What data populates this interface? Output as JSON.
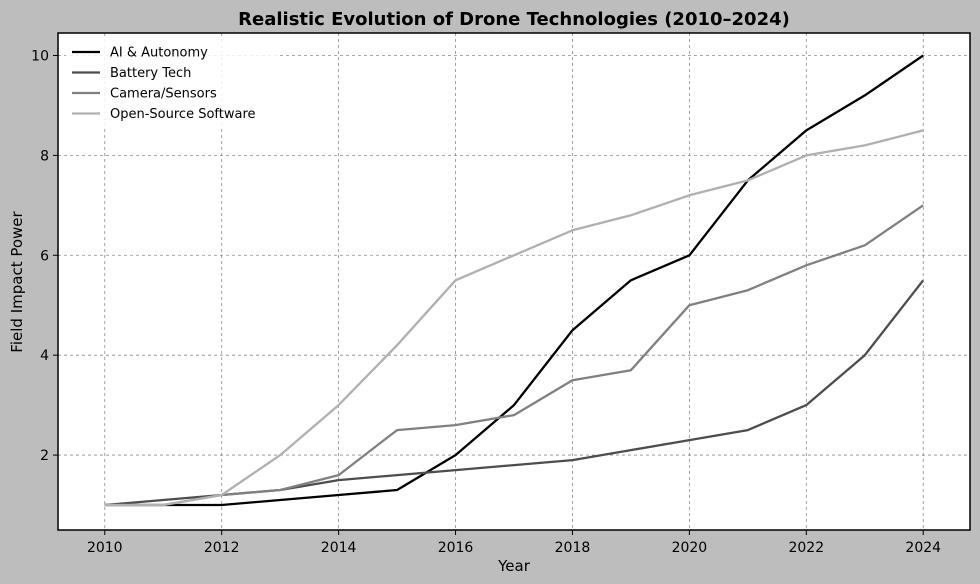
{
  "chart_data": {
    "type": "line",
    "title": "Realistic Evolution of Drone Technologies (2010–2024)",
    "xlabel": "Year",
    "ylabel": "Field Impact Power",
    "x": [
      2010,
      2011,
      2012,
      2013,
      2014,
      2015,
      2016,
      2017,
      2018,
      2019,
      2020,
      2021,
      2022,
      2023,
      2024
    ],
    "xlim": [
      2009.2,
      2024.8
    ],
    "ylim": [
      0.5,
      10.45
    ],
    "xticks": [
      2010,
      2012,
      2014,
      2016,
      2018,
      2020,
      2022,
      2024
    ],
    "yticks": [
      2,
      4,
      6,
      8,
      10
    ],
    "grid": true,
    "legend_position": "top-left",
    "series": [
      {
        "name": "AI & Autonomy",
        "color": "#000000",
        "values": [
          1.0,
          1.0,
          1.0,
          1.1,
          1.2,
          1.3,
          2.0,
          3.0,
          4.5,
          5.5,
          6.0,
          7.5,
          8.5,
          9.2,
          10.0
        ]
      },
      {
        "name": "Battery Tech",
        "color": "#4d4d4d",
        "values": [
          1.0,
          1.1,
          1.2,
          1.3,
          1.5,
          1.6,
          1.7,
          1.8,
          1.9,
          2.1,
          2.3,
          2.5,
          3.0,
          4.0,
          5.5
        ]
      },
      {
        "name": "Camera/Sensors",
        "color": "#808080",
        "values": [
          1.0,
          1.0,
          1.2,
          1.3,
          1.6,
          2.5,
          2.6,
          2.8,
          3.5,
          3.7,
          5.0,
          5.3,
          5.8,
          6.2,
          7.0
        ]
      },
      {
        "name": "Open-Source Software",
        "color": "#b0b0b0",
        "values": [
          1.0,
          1.0,
          1.2,
          2.0,
          3.0,
          4.2,
          5.5,
          6.0,
          6.5,
          6.8,
          7.2,
          7.5,
          8.0,
          8.2,
          8.5
        ]
      }
    ]
  }
}
